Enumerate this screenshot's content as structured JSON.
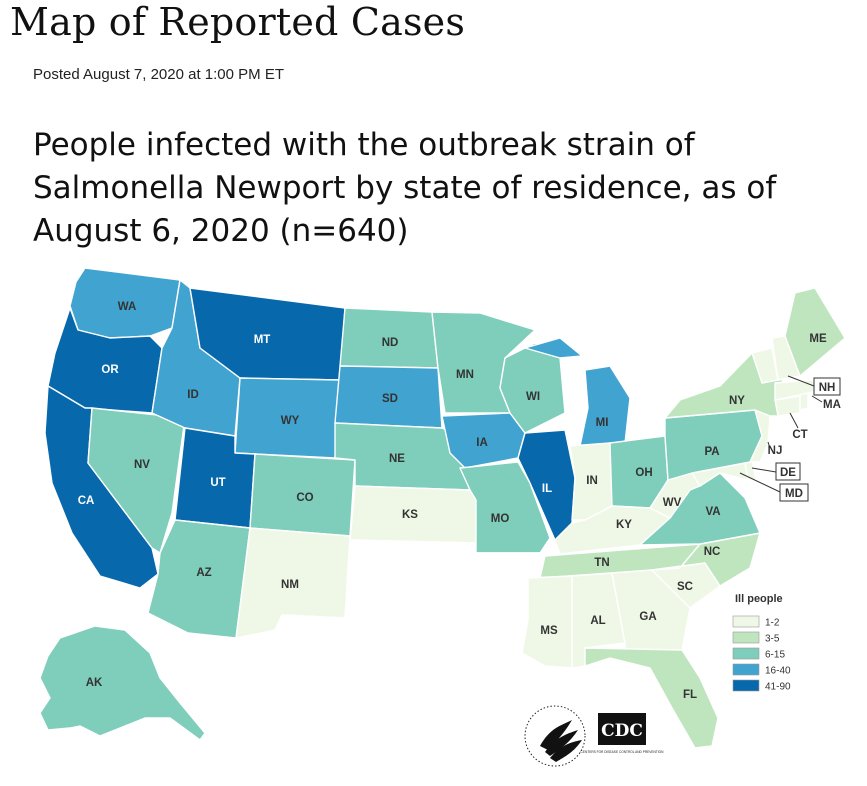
{
  "page": {
    "title": "Map of Reported Cases",
    "posted": "Posted August 7, 2020 at 1:00 PM ET",
    "headline": "People infected with the outbreak strain of Salmonella Newport by state of residence, as of August 6, 2020 (n=640)"
  },
  "legend": {
    "title": "Ill people",
    "bins": [
      {
        "label": "1-2",
        "color": "#eff8e6"
      },
      {
        "label": "3-5",
        "color": "#bfe5bf"
      },
      {
        "label": "6-15",
        "color": "#7fcdbb"
      },
      {
        "label": "16-40",
        "color": "#41a3d0"
      },
      {
        "label": "41-90",
        "color": "#0868ac"
      }
    ],
    "none_color": "#ffffff"
  },
  "states": {
    "WA": {
      "label": "WA",
      "bin": 3
    },
    "OR": {
      "label": "OR",
      "bin": 4
    },
    "CA": {
      "label": "CA",
      "bin": 4
    },
    "ID": {
      "label": "ID",
      "bin": 3
    },
    "NV": {
      "label": "NV",
      "bin": 2
    },
    "MT": {
      "label": "MT",
      "bin": 4
    },
    "WY": {
      "label": "WY",
      "bin": 3
    },
    "UT": {
      "label": "UT",
      "bin": 4
    },
    "AZ": {
      "label": "AZ",
      "bin": 2
    },
    "CO": {
      "label": "CO",
      "bin": 2
    },
    "NM": {
      "label": "NM",
      "bin": 0
    },
    "ND": {
      "label": "ND",
      "bin": 2
    },
    "SD": {
      "label": "SD",
      "bin": 3
    },
    "NE": {
      "label": "NE",
      "bin": 2
    },
    "KS": {
      "label": "KS",
      "bin": 0
    },
    "OK": {
      "label": "",
      "bin": -1
    },
    "TX": {
      "label": "",
      "bin": -1
    },
    "MN": {
      "label": "MN",
      "bin": 2
    },
    "IA": {
      "label": "IA",
      "bin": 3
    },
    "MO": {
      "label": "MO",
      "bin": 2
    },
    "AR": {
      "label": "",
      "bin": -1
    },
    "LA": {
      "label": "",
      "bin": -1
    },
    "WI": {
      "label": "WI",
      "bin": 2
    },
    "IL": {
      "label": "IL",
      "bin": 4
    },
    "MI": {
      "label": "MI",
      "bin": 3
    },
    "IN": {
      "label": "IN",
      "bin": 0
    },
    "OH": {
      "label": "OH",
      "bin": 2
    },
    "KY": {
      "label": "KY",
      "bin": 0
    },
    "TN": {
      "label": "TN",
      "bin": 1
    },
    "MS": {
      "label": "MS",
      "bin": 0
    },
    "AL": {
      "label": "AL",
      "bin": 0
    },
    "GA": {
      "label": "GA",
      "bin": 0
    },
    "FL": {
      "label": "FL",
      "bin": 1
    },
    "SC": {
      "label": "SC",
      "bin": 0
    },
    "NC": {
      "label": "NC",
      "bin": 1
    },
    "VA": {
      "label": "VA",
      "bin": 2
    },
    "WV": {
      "label": "WV",
      "bin": 0
    },
    "PA": {
      "label": "PA",
      "bin": 2
    },
    "NY": {
      "label": "NY",
      "bin": 1
    },
    "VT": {
      "label": "",
      "bin": 0
    },
    "NH": {
      "label": "NH",
      "bin": 0
    },
    "ME": {
      "label": "ME",
      "bin": 1
    },
    "MA": {
      "label": "MA",
      "bin": 0
    },
    "CT": {
      "label": "CT",
      "bin": 0
    },
    "RI": {
      "label": "",
      "bin": 0
    },
    "NJ": {
      "label": "NJ",
      "bin": 0
    },
    "DE": {
      "label": "DE",
      "bin": 0
    },
    "MD": {
      "label": "MD",
      "bin": 0
    },
    "AK": {
      "label": "AK",
      "bin": 2
    },
    "HI": {
      "label": "",
      "bin": -1
    }
  },
  "logos": {
    "hhs_icon": "hhs-eagle-seal",
    "cdc_mark": "CDC",
    "cdc_subtext": "CENTERS FOR DISEASE CONTROL AND PREVENTION"
  }
}
